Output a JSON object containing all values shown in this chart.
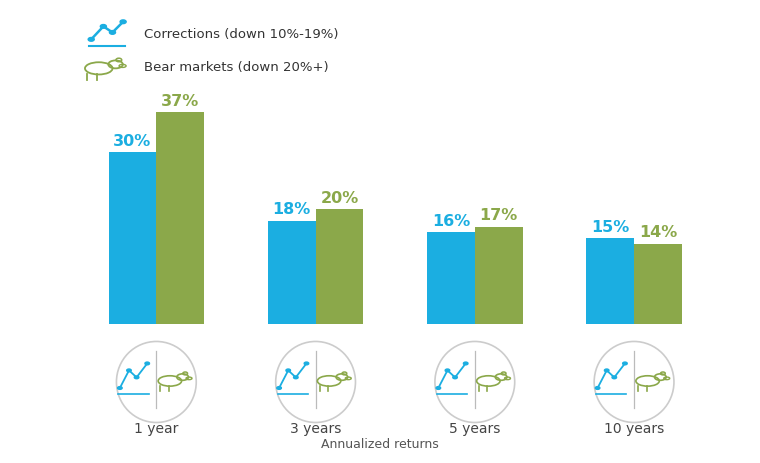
{
  "categories": [
    "1 year",
    "3 years",
    "5 years",
    "10 years"
  ],
  "corrections_values": [
    30,
    18,
    16,
    15
  ],
  "bear_values": [
    37,
    20,
    17,
    14
  ],
  "corrections_color": "#1BAEE1",
  "bear_color": "#8BA84A",
  "background_color": "#ffffff",
  "bar_width": 0.3,
  "xlabel": "Annualized returns",
  "legend_corrections": "Corrections (down 10%-19%)",
  "legend_bear": "Bear markets (down 20%+)",
  "value_fontsize": 11.5,
  "category_fontsize": 10,
  "xlabel_fontsize": 9,
  "legend_fontsize": 9.5,
  "ellipse_facecolor": "#ffffff",
  "ellipse_edgecolor": "#cccccc",
  "divider_color": "#bbbbbb",
  "label_color": "#444444",
  "xlabel_color": "#555555"
}
